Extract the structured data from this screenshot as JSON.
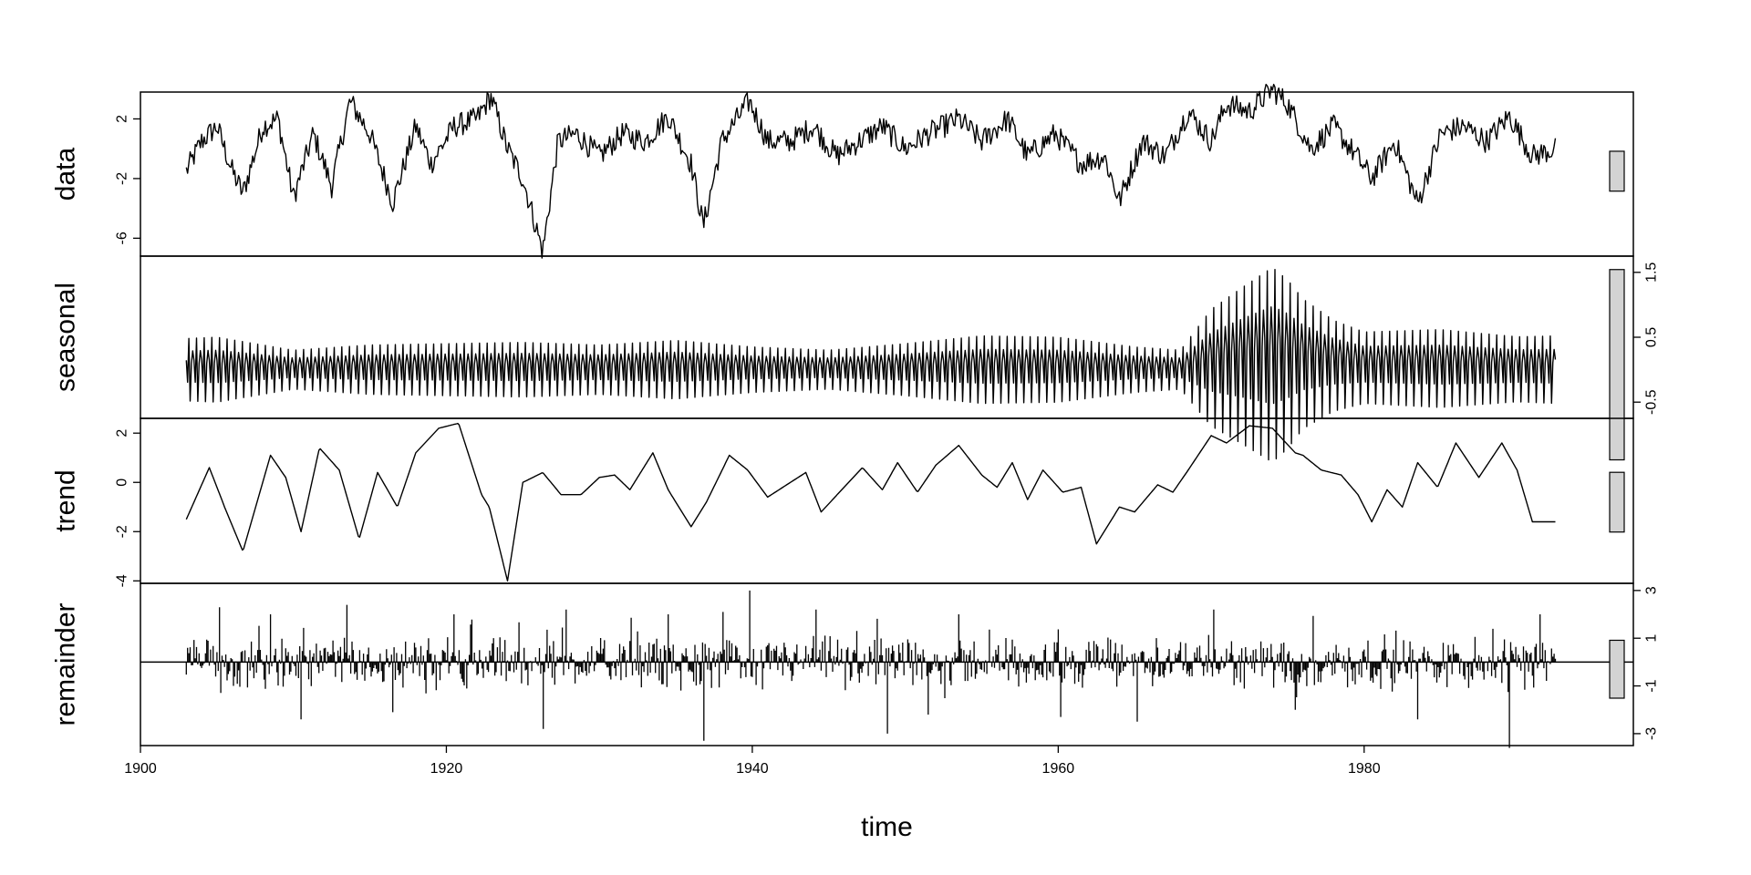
{
  "chart_data": {
    "type": "line",
    "title": "",
    "xlabel": "time",
    "x_range": [
      1903,
      1992.5
    ],
    "x_ticks": [
      1900,
      1920,
      1940,
      1960,
      1980
    ],
    "colors": {
      "line": "#000000",
      "bar_fill": "#d3d3d3",
      "frame": "#000000"
    },
    "panels": [
      {
        "name": "data",
        "ylabel": "data",
        "ylim": [
          -7.2,
          3.8
        ],
        "y_ticks": [
          -6,
          -2,
          2
        ],
        "y_axis_side": "left",
        "style": "line",
        "series": {
          "x": [
            1903,
            1904,
            1905,
            1906,
            1906.7,
            1908,
            1909,
            1910,
            1911.3,
            1912.5,
            1913.7,
            1915,
            1916.5,
            1918,
            1919,
            1920.5,
            1922,
            1922.9,
            1924,
            1925,
            1926.3,
            1927.3,
            1928.5,
            1930,
            1931.5,
            1933,
            1934.5,
            1936,
            1936.8,
            1938,
            1939.8,
            1941,
            1942.5,
            1944,
            1945.5,
            1947,
            1948.5,
            1950,
            1951.5,
            1953.5,
            1955,
            1956.7,
            1958,
            1959.8,
            1961.5,
            1963,
            1964,
            1965.5,
            1967,
            1968.5,
            1970,
            1971,
            1972.5,
            1974,
            1975,
            1976.5,
            1978,
            1979.5,
            1980.5,
            1982,
            1983.5,
            1985,
            1986.5,
            1988,
            1989.5,
            1991,
            1992.5
          ],
          "y": [
            -1.5,
            0.5,
            1.5,
            -1.5,
            -3,
            1.5,
            2,
            -3.3,
            1,
            -2.5,
            3.2,
            1,
            -3.6,
            1.5,
            -1,
            1.5,
            2,
            3.5,
            0,
            -2,
            -6.9,
            0.5,
            1,
            -0.5,
            1,
            0.5,
            2.2,
            -1,
            -5.2,
            0.5,
            3.2,
            0.5,
            0.5,
            1.5,
            -0.5,
            0.5,
            1.5,
            0,
            1,
            2,
            0.5,
            2,
            -0.5,
            1,
            -1,
            -0.5,
            -3.5,
            0.5,
            -0.5,
            2.5,
            0.5,
            3,
            2.5,
            4,
            3,
            0,
            1.5,
            -0.5,
            -2,
            0.5,
            -3.7,
            1,
            1.5,
            0.5,
            2.2,
            -0.5,
            0
          ]
        }
      },
      {
        "name": "seasonal",
        "ylabel": "seasonal",
        "ylim": [
          -0.75,
          1.75
        ],
        "y_ticks": [
          -0.5,
          0.5,
          1.5
        ],
        "y_axis_side": "right",
        "style": "line",
        "series": {
          "x_start": 1903,
          "x_end": 1992.5,
          "period": 1,
          "amplitude_knots": {
            "x": [
              1903,
              1905,
              1910,
              1915,
              1920,
              1925,
              1930,
              1935,
              1940,
              1945,
              1950,
              1955,
              1960,
              1965,
              1968,
              1970,
              1972,
              1974,
              1975,
              1976,
              1978,
              1980,
              1985,
              1990,
              1992.5
            ],
            "y": [
              0.48,
              0.5,
              0.3,
              0.38,
              0.4,
              0.42,
              0.38,
              0.45,
              0.35,
              0.3,
              0.4,
              0.52,
              0.5,
              0.35,
              0.3,
              0.9,
              1.2,
              1.5,
              1.3,
              1.0,
              0.7,
              0.55,
              0.6,
              0.5,
              0.52
            ]
          },
          "offset_knots": {
            "x": [
              1903,
              1968,
              1972,
              1976,
              1980,
              1992.5
            ],
            "y": [
              0,
              0,
              0.2,
              0.3,
              0.1,
              0
            ]
          },
          "shape": [
            0.3,
            -0.4,
            1.0,
            -1.0,
            0.2,
            0.6
          ]
        }
      },
      {
        "name": "trend",
        "ylabel": "trend",
        "ylim": [
          -4.1,
          2.6
        ],
        "y_ticks": [
          -4,
          -2,
          0,
          2
        ],
        "y_axis_side": "left",
        "style": "line",
        "series": {
          "x": [
            1903,
            1904.5,
            1905.5,
            1906.7,
            1908.5,
            1909.5,
            1910.5,
            1911.7,
            1913,
            1914.3,
            1915.5,
            1916.8,
            1918,
            1919.5,
            1920.8,
            1922.3,
            1922.8,
            1924,
            1925,
            1926.3,
            1927.5,
            1928.8,
            1930,
            1931,
            1932,
            1933.5,
            1934.5,
            1936,
            1937,
            1938.5,
            1939.7,
            1941,
            1942,
            1943.5,
            1944.5,
            1946,
            1947.2,
            1948.5,
            1949.5,
            1950.8,
            1952,
            1953.5,
            1955,
            1956,
            1957,
            1958,
            1959,
            1960.3,
            1961.5,
            1962.5,
            1964,
            1965,
            1966.5,
            1967.5,
            1968.5,
            1970,
            1971,
            1972.5,
            1974,
            1975.5,
            1976,
            1977.2,
            1978.5,
            1979.6,
            1980.5,
            1981.5,
            1982.5,
            1983.5,
            1984.8,
            1986,
            1987.5,
            1989,
            1990,
            1991,
            1992.5
          ],
          "y": [
            -1.5,
            0.6,
            -1,
            -2.8,
            1.1,
            0.2,
            -2,
            1.4,
            0.5,
            -2.3,
            0.4,
            -1,
            1.2,
            2.2,
            2.4,
            -0.5,
            -1,
            -4,
            0,
            0.4,
            -0.5,
            -0.5,
            0.2,
            0.3,
            -0.3,
            1.2,
            -0.3,
            -1.8,
            -0.8,
            1.1,
            0.5,
            -0.6,
            -0.2,
            0.4,
            -1.2,
            -0.2,
            0.6,
            -0.3,
            0.8,
            -0.4,
            0.7,
            1.5,
            0.3,
            -0.2,
            0.8,
            -0.7,
            0.5,
            -0.4,
            -0.2,
            -2.5,
            -1,
            -1.2,
            -0.1,
            -0.4,
            0.5,
            1.9,
            1.6,
            2.3,
            2.2,
            1.2,
            1.1,
            0.5,
            0.3,
            -0.5,
            -1.6,
            -0.3,
            -1,
            0.8,
            -0.2,
            1.6,
            0.2,
            1.6,
            0.5,
            -1.6,
            -1.6
          ]
        }
      },
      {
        "name": "remainder",
        "ylabel": "remainder",
        "ylim": [
          -3.5,
          3.3
        ],
        "y_ticks": [
          -3,
          -1,
          1,
          3
        ],
        "y_axis_side": "right",
        "style": "histogram",
        "baseline": 0,
        "series": {
          "x_start": 1903,
          "x_end": 1992.5,
          "peaks": [
            {
              "x": 1905.2,
              "y": 2.3
            },
            {
              "x": 1908.5,
              "y": 2.0
            },
            {
              "x": 1910.5,
              "y": -2.4
            },
            {
              "x": 1913.5,
              "y": 2.4
            },
            {
              "x": 1916.5,
              "y": -2.1
            },
            {
              "x": 1920.5,
              "y": 2.0
            },
            {
              "x": 1926.3,
              "y": -2.8
            },
            {
              "x": 1927.8,
              "y": 2.2
            },
            {
              "x": 1934.5,
              "y": 2.0
            },
            {
              "x": 1936.8,
              "y": -3.3
            },
            {
              "x": 1939.8,
              "y": 3.0
            },
            {
              "x": 1944.2,
              "y": 2.2
            },
            {
              "x": 1948.8,
              "y": -3.0
            },
            {
              "x": 1951.5,
              "y": -2.2
            },
            {
              "x": 1953.5,
              "y": 2.0
            },
            {
              "x": 1960.2,
              "y": -2.3
            },
            {
              "x": 1965.2,
              "y": -2.5
            },
            {
              "x": 1970.2,
              "y": 2.2
            },
            {
              "x": 1975.5,
              "y": -2.0
            },
            {
              "x": 1983.5,
              "y": -2.4
            },
            {
              "x": 1989.5,
              "y": -3.6
            },
            {
              "x": 1991.5,
              "y": 2.0
            }
          ],
          "noise_amplitude": 0.9
        }
      }
    ],
    "range_bars": {
      "position": "right",
      "fill": "#d3d3d3"
    }
  }
}
